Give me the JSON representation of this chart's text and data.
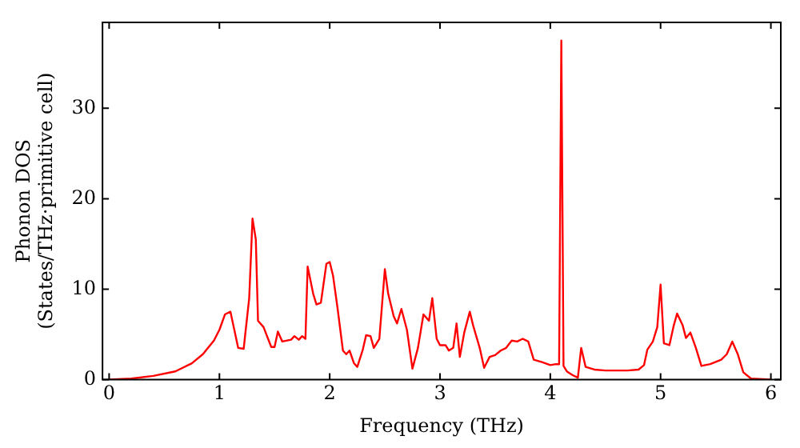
{
  "chart_data": {
    "type": "line",
    "xlabel": "Frequency (THz)",
    "ylabel": "Phonon DOS\n(States/THz·primitive cell)",
    "xlim": [
      -0.06,
      6.09
    ],
    "ylim": [
      0,
      39.5
    ],
    "xticks": [
      0,
      1,
      2,
      3,
      4,
      5,
      6
    ],
    "yticks": [
      0,
      10,
      20,
      30
    ],
    "grid": false,
    "legend": false,
    "marker": "none",
    "line_style": "solid",
    "series": [
      {
        "color": "#ff0000",
        "x": [
          0,
          0.2,
          0.4,
          0.6,
          0.75,
          0.85,
          0.95,
          1.0,
          1.05,
          1.1,
          1.17,
          1.22,
          1.27,
          1.3,
          1.33,
          1.35,
          1.4,
          1.47,
          1.5,
          1.53,
          1.57,
          1.65,
          1.68,
          1.72,
          1.75,
          1.78,
          1.8,
          1.85,
          1.88,
          1.92,
          1.97,
          2.0,
          2.03,
          2.07,
          2.12,
          2.15,
          2.18,
          2.22,
          2.25,
          2.3,
          2.33,
          2.37,
          2.4,
          2.45,
          2.5,
          2.53,
          2.58,
          2.61,
          2.65,
          2.7,
          2.75,
          2.8,
          2.85,
          2.9,
          2.93,
          2.97,
          3.0,
          3.05,
          3.08,
          3.12,
          3.15,
          3.18,
          3.22,
          3.27,
          3.3,
          3.36,
          3.4,
          3.45,
          3.5,
          3.55,
          3.6,
          3.65,
          3.7,
          3.75,
          3.8,
          3.85,
          3.93,
          4.0,
          4.05,
          4.08,
          4.1,
          4.12,
          4.15,
          4.2,
          4.25,
          4.28,
          4.32,
          4.4,
          4.5,
          4.6,
          4.7,
          4.8,
          4.85,
          4.88,
          4.93,
          4.97,
          5.0,
          5.03,
          5.08,
          5.12,
          5.15,
          5.2,
          5.23,
          5.27,
          5.32,
          5.37,
          5.45,
          5.55,
          5.6,
          5.65,
          5.7,
          5.75,
          5.82,
          6.0
        ],
        "values": [
          0,
          0.1,
          0.4,
          0.9,
          1.8,
          2.8,
          4.3,
          5.5,
          7.2,
          7.5,
          3.5,
          3.4,
          9,
          17.8,
          15.5,
          6.5,
          5.8,
          3.6,
          3.6,
          5.3,
          4.2,
          4.4,
          4.8,
          4.4,
          4.8,
          4.5,
          12.5,
          9.5,
          8.3,
          8.5,
          12.8,
          13,
          11.5,
          8,
          3.2,
          2.8,
          3.2,
          1.8,
          1.4,
          3.3,
          4.9,
          4.8,
          3.5,
          4.5,
          12.2,
          9.5,
          7,
          6.2,
          7.8,
          5.5,
          1.2,
          3.5,
          7.2,
          6.5,
          9,
          4.5,
          3.8,
          3.8,
          3.2,
          3.5,
          6.2,
          2.5,
          5.2,
          7.5,
          6,
          3.5,
          1.3,
          2.5,
          2.7,
          3.2,
          3.5,
          4.3,
          4.2,
          4.5,
          4.2,
          2.2,
          1.9,
          1.6,
          1.7,
          1.7,
          37.5,
          1.5,
          0.9,
          0.5,
          0.2,
          3.5,
          1.4,
          1.1,
          1,
          1,
          1,
          1.1,
          1.6,
          3.3,
          4.2,
          5.8,
          10.5,
          4,
          3.8,
          6,
          7.3,
          6,
          4.6,
          5.2,
          3.5,
          1.5,
          1.7,
          2.2,
          2.8,
          4.2,
          2.8,
          0.8,
          0.1,
          0
        ]
      }
    ]
  }
}
